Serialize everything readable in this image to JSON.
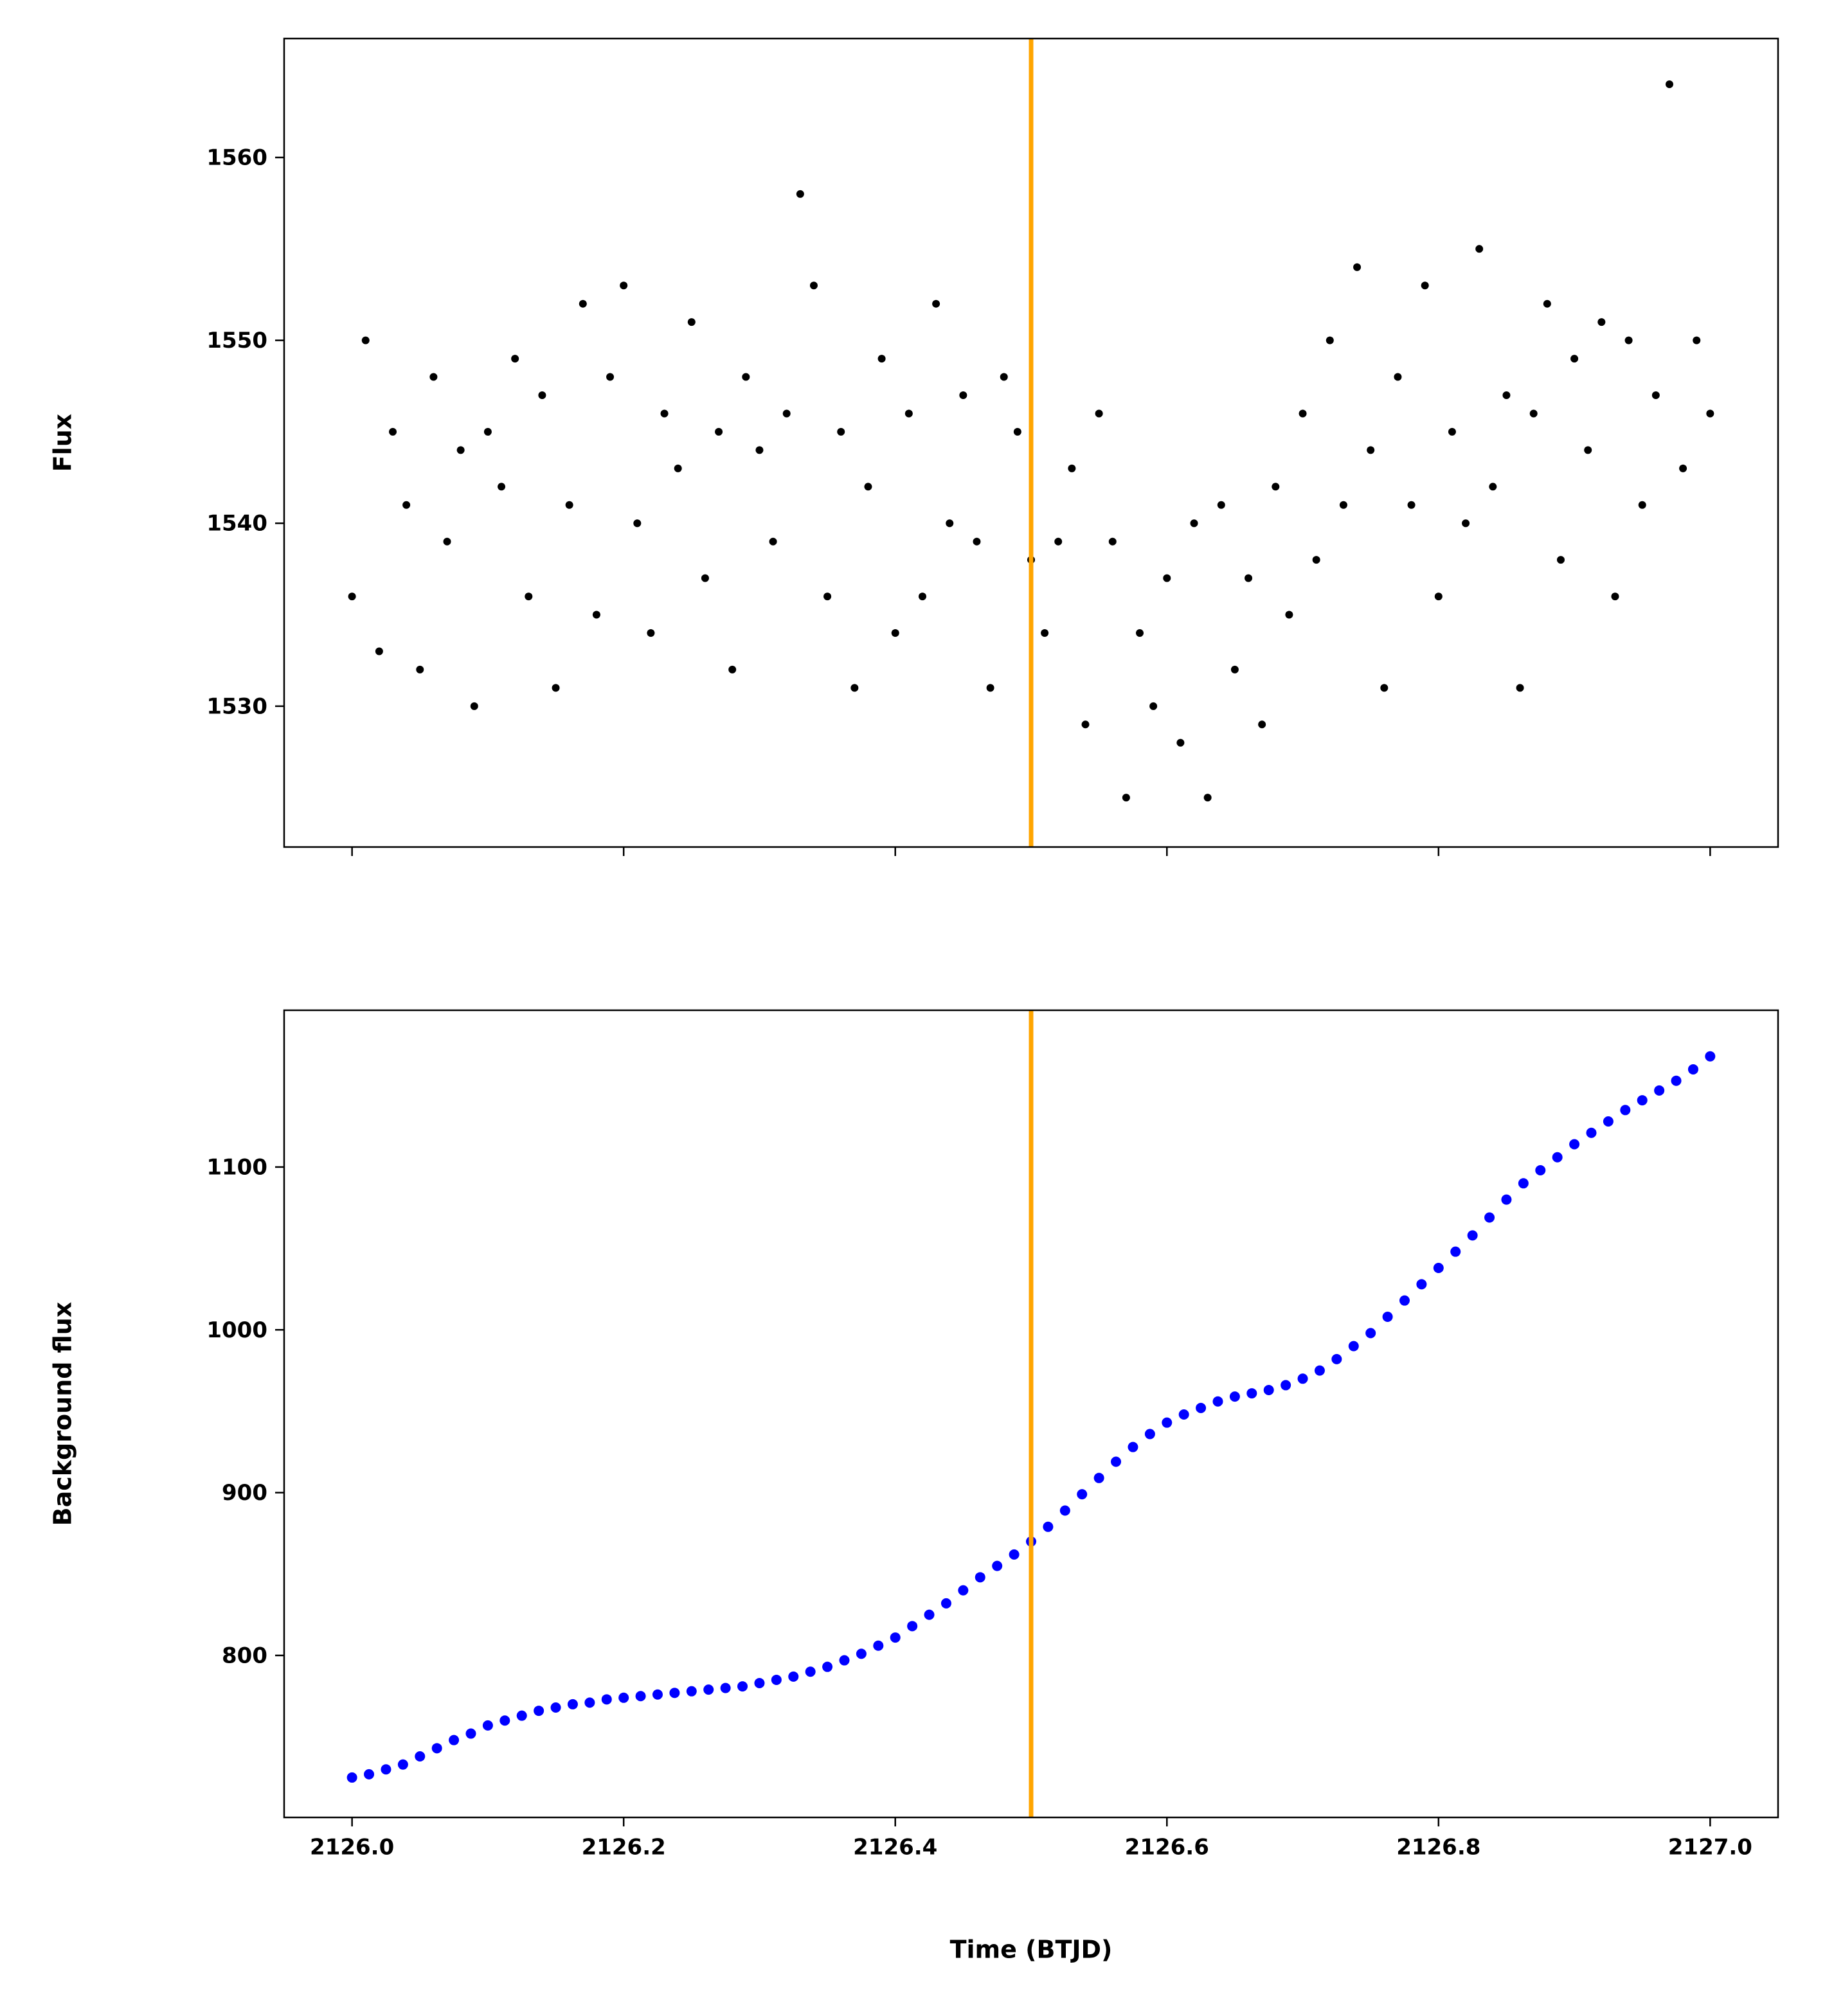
{
  "chart_data": [
    {
      "type": "scatter",
      "ylabel": "Flux",
      "color": "#000000",
      "vline": 2126.5,
      "vline_color": "#ffa500",
      "xlim": [
        2125.95,
        2127.05
      ],
      "ylim": [
        1522.3,
        1566.5
      ],
      "xticks": [
        2126.0,
        2126.2,
        2126.4,
        2126.6,
        2126.8,
        2127.0
      ],
      "show_xticklabels": false,
      "yticks": [
        1530,
        1540,
        1550,
        1560
      ],
      "x": [
        2126.0,
        2126.01,
        2126.02,
        2126.03,
        2126.04,
        2126.05,
        2126.06,
        2126.07,
        2126.08,
        2126.09,
        2126.1,
        2126.11,
        2126.12,
        2126.13,
        2126.14,
        2126.15,
        2126.16,
        2126.17,
        2126.18,
        2126.19,
        2126.2,
        2126.21,
        2126.22,
        2126.23,
        2126.24,
        2126.25,
        2126.26,
        2126.27,
        2126.28,
        2126.29,
        2126.3,
        2126.31,
        2126.32,
        2126.33,
        2126.34,
        2126.35,
        2126.36,
        2126.37,
        2126.38,
        2126.39,
        2126.4,
        2126.41,
        2126.42,
        2126.43,
        2126.44,
        2126.45,
        2126.46,
        2126.47,
        2126.48,
        2126.49,
        2126.5,
        2126.51,
        2126.52,
        2126.53,
        2126.54,
        2126.55,
        2126.56,
        2126.57,
        2126.58,
        2126.59,
        2126.6,
        2126.61,
        2126.62,
        2126.63,
        2126.64,
        2126.65,
        2126.66,
        2126.67,
        2126.68,
        2126.69,
        2126.7,
        2126.71,
        2126.72,
        2126.73,
        2126.74,
        2126.75,
        2126.76,
        2126.77,
        2126.78,
        2126.79,
        2126.8,
        2126.81,
        2126.82,
        2126.83,
        2126.84,
        2126.85,
        2126.86,
        2126.87,
        2126.88,
        2126.89,
        2126.9,
        2126.91,
        2126.92,
        2126.93,
        2126.94,
        2126.95,
        2126.96,
        2126.97,
        2126.98,
        2126.99,
        2127.0
      ],
      "values": [
        1536,
        1550,
        1533,
        1545,
        1541,
        1532,
        1548,
        1539,
        1544,
        1530,
        1545,
        1542,
        1549,
        1536,
        1547,
        1531,
        1541,
        1552,
        1535,
        1548,
        1553,
        1540,
        1534,
        1546,
        1543,
        1551,
        1537,
        1545,
        1532,
        1548,
        1544,
        1539,
        1546,
        1558,
        1553,
        1536,
        1545,
        1531,
        1542,
        1549,
        1534,
        1546,
        1536,
        1552,
        1540,
        1547,
        1539,
        1531,
        1548,
        1545,
        1538,
        1534,
        1539,
        1543,
        1529,
        1546,
        1539,
        1525,
        1534,
        1530,
        1537,
        1528,
        1540,
        1525,
        1541,
        1532,
        1537,
        1529,
        1542,
        1535,
        1546,
        1538,
        1550,
        1541,
        1554,
        1544,
        1531,
        1548,
        1541,
        1553,
        1536,
        1545,
        1540,
        1555,
        1542,
        1547,
        1531,
        1546,
        1552,
        1538,
        1549,
        1544,
        1551,
        1536,
        1550,
        1541,
        1547,
        1564,
        1543,
        1550,
        1546
      ]
    },
    {
      "type": "scatter",
      "ylabel": "Background flux",
      "xlabel": "Time (BTJD)",
      "color": "#0000ff",
      "vline": 2126.5,
      "vline_color": "#ffa500",
      "xlim": [
        2125.95,
        2127.05
      ],
      "ylim": [
        700.5,
        1196.3
      ],
      "xticks": [
        {
          "value": 2126.0,
          "label": "2126.0"
        },
        {
          "value": 2126.2,
          "label": "2126.2"
        },
        {
          "value": 2126.4,
          "label": "2126.4"
        },
        {
          "value": 2126.6,
          "label": "2126.6"
        },
        {
          "value": 2126.8,
          "label": "2126.8"
        },
        {
          "value": 2127.0,
          "label": "2127.0"
        }
      ],
      "show_xticklabels": true,
      "yticks": [
        800,
        900,
        1000,
        1100
      ],
      "x": [
        2126.0,
        2126.0125,
        2126.025,
        2126.0375,
        2126.05,
        2126.0625,
        2126.075,
        2126.0875,
        2126.1,
        2126.1125,
        2126.125,
        2126.1375,
        2126.15,
        2126.1625,
        2126.175,
        2126.1875,
        2126.2,
        2126.2125,
        2126.225,
        2126.2375,
        2126.25,
        2126.2625,
        2126.275,
        2126.2875,
        2126.3,
        2126.3125,
        2126.325,
        2126.3375,
        2126.35,
        2126.3625,
        2126.375,
        2126.3875,
        2126.4,
        2126.4125,
        2126.425,
        2126.4375,
        2126.45,
        2126.4625,
        2126.475,
        2126.4875,
        2126.5,
        2126.5125,
        2126.525,
        2126.5375,
        2126.55,
        2126.5625,
        2126.575,
        2126.5875,
        2126.6,
        2126.6125,
        2126.625,
        2126.6375,
        2126.65,
        2126.6625,
        2126.675,
        2126.6875,
        2126.7,
        2126.7125,
        2126.725,
        2126.7375,
        2126.75,
        2126.7625,
        2126.775,
        2126.7875,
        2126.8,
        2126.8125,
        2126.825,
        2126.8375,
        2126.85,
        2126.8625,
        2126.875,
        2126.8875,
        2126.9,
        2126.9125,
        2126.925,
        2126.9375,
        2126.95,
        2126.9625,
        2126.975,
        2126.9875,
        2127.0
      ],
      "values": [
        725,
        727,
        730,
        733,
        738,
        743,
        748,
        752,
        757,
        760,
        763,
        766,
        768,
        770,
        771,
        773,
        774,
        775,
        776,
        777,
        778,
        779,
        780,
        781,
        783,
        785,
        787,
        790,
        793,
        797,
        801,
        806,
        811,
        818,
        825,
        832,
        840,
        848,
        855,
        862,
        870,
        879,
        889,
        899,
        909,
        919,
        928,
        936,
        943,
        948,
        952,
        956,
        959,
        961,
        963,
        966,
        970,
        975,
        982,
        990,
        998,
        1008,
        1018,
        1028,
        1038,
        1048,
        1058,
        1069,
        1080,
        1090,
        1098,
        1106,
        1114,
        1121,
        1128,
        1135,
        1141,
        1147,
        1153,
        1160,
        1168
      ]
    }
  ]
}
